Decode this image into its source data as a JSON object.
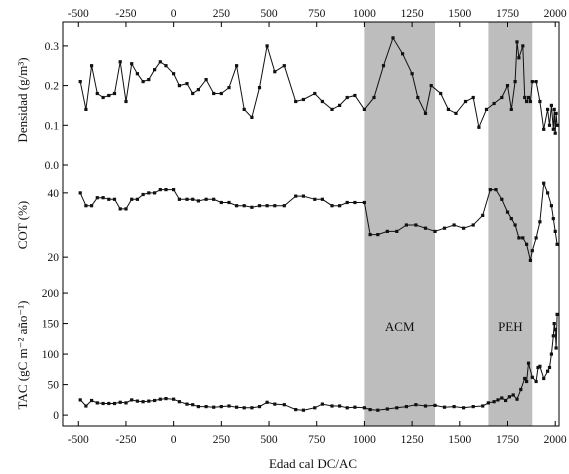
{
  "chart_data": {
    "type": "line",
    "xlabel": "Edad cal DC/AC",
    "xlim": [
      -580,
      2020
    ],
    "xticks": [
      -500,
      -250,
      0,
      250,
      500,
      750,
      1000,
      1250,
      1500,
      1750,
      2000
    ],
    "xtick_labels": [
      "-500",
      "-250",
      "0",
      "250",
      "500",
      "750",
      "1000",
      "1250",
      "1500",
      "1750",
      "2000"
    ],
    "bands": [
      {
        "label": "ACM",
        "x0": 1000,
        "x1": 1370,
        "color": "#bdbdbd"
      },
      {
        "label": "PEH",
        "x0": 1650,
        "x1": 1880,
        "color": "#bdbdbd"
      }
    ],
    "panels": [
      {
        "ylabel": "Densidad (g/m³)",
        "ylim": [
          0.0,
          0.34
        ],
        "yticks": [
          0.0,
          0.1,
          0.2,
          0.3
        ],
        "ytick_labels": [
          "0.0",
          "0.1",
          "0.2",
          "0.3"
        ],
        "series": [
          {
            "x": [
              -490,
              -460,
              -430,
              -400,
              -370,
              -340,
              -310,
              -280,
              -250,
              -220,
              -190,
              -160,
              -130,
              -100,
              -70,
              -40,
              0,
              30,
              70,
              100,
              130,
              170,
              210,
              250,
              290,
              330,
              370,
              410,
              450,
              490,
              530,
              580,
              640,
              680,
              740,
              780,
              830,
              870,
              910,
              950,
              1000,
              1050,
              1100,
              1150,
              1200,
              1250,
              1280,
              1320,
              1350,
              1400,
              1440,
              1480,
              1530,
              1570,
              1600,
              1640,
              1680,
              1720,
              1750,
              1770,
              1790,
              1800,
              1810,
              1830,
              1840,
              1850,
              1860,
              1870,
              1880,
              1900,
              1920,
              1940,
              1960,
              1970,
              1980,
              1990,
              1995,
              2000,
              2005,
              2010
            ],
            "values": [
              0.21,
              0.14,
              0.25,
              0.18,
              0.17,
              0.175,
              0.18,
              0.26,
              0.16,
              0.255,
              0.23,
              0.21,
              0.215,
              0.24,
              0.26,
              0.25,
              0.23,
              0.2,
              0.205,
              0.18,
              0.19,
              0.215,
              0.18,
              0.18,
              0.195,
              0.25,
              0.14,
              0.12,
              0.195,
              0.3,
              0.235,
              0.25,
              0.16,
              0.165,
              0.18,
              0.16,
              0.14,
              0.15,
              0.17,
              0.175,
              0.14,
              0.17,
              0.25,
              0.32,
              0.28,
              0.23,
              0.17,
              0.13,
              0.2,
              0.18,
              0.14,
              0.13,
              0.16,
              0.17,
              0.095,
              0.14,
              0.155,
              0.17,
              0.2,
              0.14,
              0.21,
              0.31,
              0.27,
              0.3,
              0.17,
              0.16,
              0.17,
              0.16,
              0.21,
              0.21,
              0.16,
              0.09,
              0.14,
              0.1,
              0.15,
              0.09,
              0.14,
              0.08,
              0.13,
              0.1
            ]
          }
        ]
      },
      {
        "ylabel": "COT (%)",
        "ylim": [
          16,
          44
        ],
        "yticks": [
          20,
          40
        ],
        "ytick_labels": [
          "20",
          "40"
        ],
        "series": [
          {
            "x": [
              -490,
              -460,
              -430,
              -400,
              -370,
              -340,
              -310,
              -280,
              -250,
              -220,
              -190,
              -160,
              -130,
              -100,
              -70,
              -40,
              0,
              30,
              70,
              100,
              130,
              170,
              210,
              250,
              290,
              330,
              370,
              410,
              450,
              490,
              530,
              580,
              640,
              680,
              740,
              780,
              830,
              870,
              910,
              950,
              1000,
              1030,
              1070,
              1120,
              1170,
              1220,
              1270,
              1320,
              1370,
              1420,
              1470,
              1520,
              1570,
              1620,
              1660,
              1690,
              1720,
              1750,
              1770,
              1790,
              1810,
              1830,
              1850,
              1870,
              1880,
              1900,
              1920,
              1940,
              1960,
              1980,
              1990,
              2000,
              2010
            ],
            "values": [
              40,
              36,
              36,
              38.5,
              38.5,
              38,
              38,
              35,
              35,
              38,
              38,
              39.5,
              40,
              40,
              41,
              41,
              41,
              38,
              38,
              38,
              37.5,
              38,
              38,
              37,
              37,
              36,
              36,
              35.5,
              36,
              36,
              36,
              36,
              39,
              39,
              38,
              38,
              36,
              36,
              37,
              37,
              37,
              27,
              27,
              28,
              28,
              30,
              30,
              29,
              28,
              29,
              30,
              29,
              30,
              33,
              41,
              41,
              38,
              34,
              32,
              30,
              26,
              26,
              24,
              19,
              22,
              26,
              31,
              43,
              40,
              36,
              32,
              28,
              24
            ]
          }
        ]
      },
      {
        "ylabel": "TAC (gC m⁻² año⁻¹)",
        "ylim": [
          -8,
          205
        ],
        "yticks": [
          0,
          50,
          100,
          150,
          200
        ],
        "ytick_labels": [
          "0",
          "50",
          "100",
          "150",
          "200"
        ],
        "series": [
          {
            "x": [
              -490,
              -460,
              -430,
              -400,
              -370,
              -340,
              -310,
              -280,
              -250,
              -220,
              -190,
              -160,
              -130,
              -100,
              -70,
              -40,
              0,
              30,
              70,
              100,
              130,
              170,
              210,
              250,
              290,
              330,
              370,
              410,
              450,
              490,
              530,
              580,
              640,
              680,
              740,
              780,
              830,
              870,
              910,
              950,
              1000,
              1030,
              1070,
              1120,
              1170,
              1220,
              1270,
              1320,
              1370,
              1420,
              1470,
              1520,
              1570,
              1620,
              1650,
              1680,
              1700,
              1720,
              1740,
              1760,
              1780,
              1800,
              1820,
              1840,
              1850,
              1860,
              1880,
              1900,
              1910,
              1920,
              1940,
              1960,
              1970,
              1980,
              1990,
              1995,
              2000,
              2005,
              2010
            ],
            "values": [
              25,
              15,
              24,
              20,
              19,
              19,
              19,
              21,
              20,
              25,
              23,
              22,
              23,
              24,
              26,
              27,
              26,
              22,
              18,
              17,
              14,
              14,
              13,
              14,
              15,
              13,
              12,
              12,
              14,
              21,
              18,
              17,
              9,
              8,
              12,
              18,
              15,
              15,
              12,
              13,
              12,
              9,
              8,
              10,
              12,
              14,
              17,
              15,
              16,
              13,
              14,
              12,
              14,
              15,
              20,
              22,
              25,
              28,
              24,
              30,
              33,
              26,
              42,
              60,
              55,
              85,
              62,
              55,
              78,
              80,
              60,
              72,
              78,
              100,
              130,
              150,
              140,
              110,
              165
            ]
          }
        ]
      }
    ]
  }
}
